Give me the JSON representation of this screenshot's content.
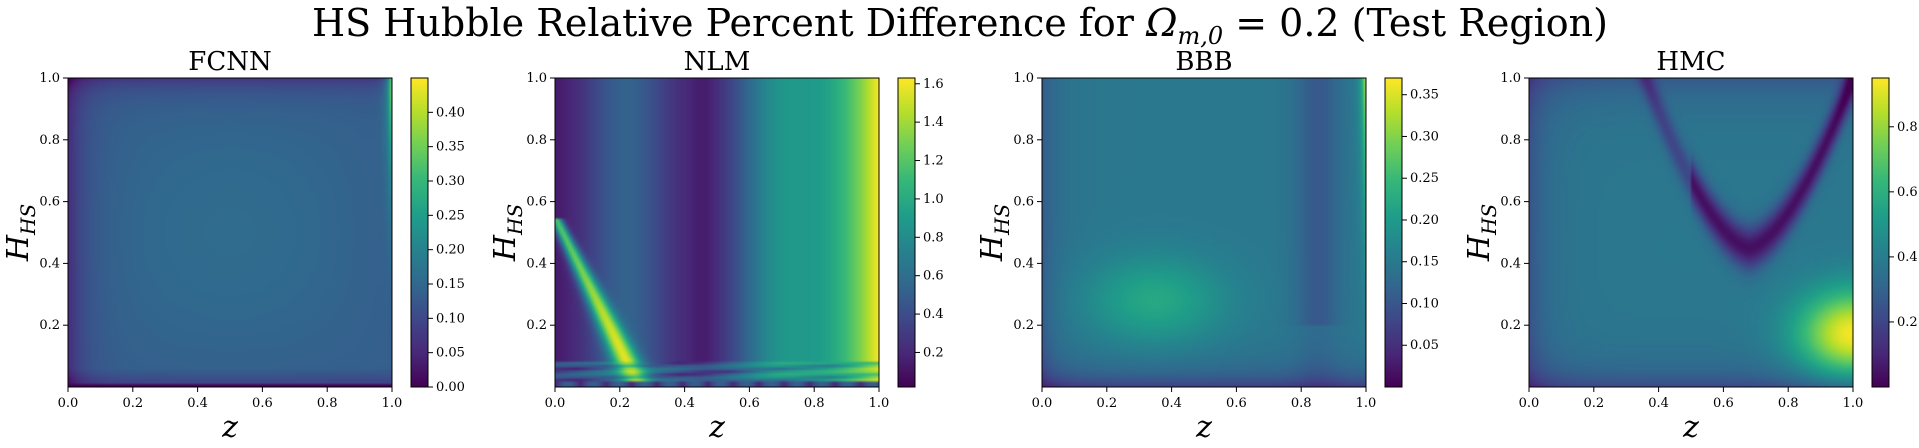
{
  "figure": {
    "title_main": "HS Hubble Relative Percent Difference for ",
    "title_sym": "Ω",
    "title_sub": "m,0",
    "title_tail": " = 0.2 (Test Region)",
    "colormap": "viridis",
    "viridis_stops": [
      "#440154",
      "#482878",
      "#3e4989",
      "#31688e",
      "#26828e",
      "#1f9e89",
      "#35b779",
      "#6ece58",
      "#b5de2b",
      "#fde725"
    ]
  },
  "chart_data": [
    {
      "type": "heatmap",
      "title": "FCNN",
      "xlabel": "z",
      "ylabel_main": "H",
      "ylabel_sub": "HS",
      "xlim": [
        0,
        1
      ],
      "ylim": [
        0,
        1
      ],
      "xticks": [
        "0.0",
        "0.2",
        "0.4",
        "0.6",
        "0.8",
        "1.0"
      ],
      "yticks": [
        "0.2",
        "0.4",
        "0.6",
        "0.8",
        "1.0"
      ],
      "colorbar_range": [
        0.0,
        0.45
      ],
      "colorbar_ticks": [
        "0.00",
        "0.05",
        "0.10",
        "0.15",
        "0.20",
        "0.25",
        "0.30",
        "0.35",
        "0.40"
      ],
      "pattern": "fcnn"
    },
    {
      "type": "heatmap",
      "title": "NLM",
      "xlabel": "z",
      "ylabel_main": "H",
      "ylabel_sub": "HS",
      "xlim": [
        0,
        1
      ],
      "ylim": [
        0,
        1
      ],
      "xticks": [
        "0.0",
        "0.2",
        "0.4",
        "0.6",
        "0.8",
        "1.0"
      ],
      "yticks": [
        "0.2",
        "0.4",
        "0.6",
        "0.8",
        "1.0"
      ],
      "colorbar_range": [
        0.02,
        1.63
      ],
      "colorbar_ticks": [
        "0.2",
        "0.4",
        "0.6",
        "0.8",
        "1.0",
        "1.2",
        "1.4",
        "1.6"
      ],
      "pattern": "nlm"
    },
    {
      "type": "heatmap",
      "title": "BBB",
      "xlabel": "z",
      "ylabel_main": "H",
      "ylabel_sub": "HS",
      "xlim": [
        0,
        1
      ],
      "ylim": [
        0,
        1
      ],
      "xticks": [
        "0.0",
        "0.2",
        "0.4",
        "0.6",
        "0.8",
        "1.0"
      ],
      "yticks": [
        "0.2",
        "0.4",
        "0.6",
        "0.8",
        "1.0"
      ],
      "colorbar_range": [
        0.0,
        0.37
      ],
      "colorbar_ticks": [
        "0.05",
        "0.10",
        "0.15",
        "0.20",
        "0.25",
        "0.30",
        "0.35"
      ],
      "pattern": "bbb"
    },
    {
      "type": "heatmap",
      "title": "HMC",
      "xlabel": "z",
      "ylabel_main": "H",
      "ylabel_sub": "HS",
      "xlim": [
        0,
        1
      ],
      "ylim": [
        0,
        1
      ],
      "xticks": [
        "0.0",
        "0.2",
        "0.4",
        "0.6",
        "0.8",
        "1.0"
      ],
      "yticks": [
        "0.2",
        "0.4",
        "0.6",
        "0.8",
        "1.0"
      ],
      "colorbar_range": [
        0.0,
        0.95
      ],
      "colorbar_ticks": [
        "0.2",
        "0.4",
        "0.6",
        "0.8"
      ],
      "pattern": "hmc"
    }
  ]
}
